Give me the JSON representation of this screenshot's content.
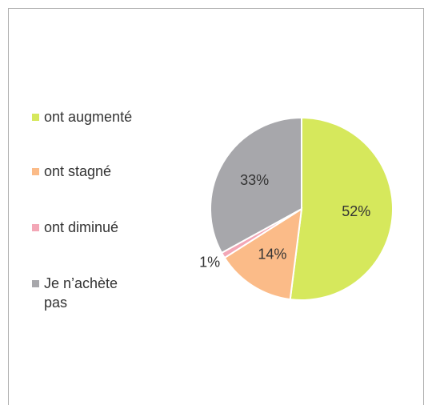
{
  "chart_data": {
    "type": "pie",
    "categories": [
      "ont augmenté",
      "ont stagné",
      "ont diminué",
      "Je n’achète pas"
    ],
    "values": [
      52,
      14,
      1,
      33
    ],
    "value_labels": [
      "52%",
      "14%",
      "1%",
      "33%"
    ],
    "colors": [
      "#d6e85c",
      "#fbbb88",
      "#f3a7b6",
      "#a7a7ab"
    ],
    "legend": "left"
  }
}
